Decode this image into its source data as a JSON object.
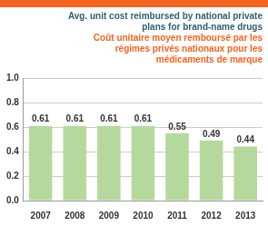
{
  "chart_data": {
    "type": "bar",
    "title": "Avg. unit cost reimbursed by national private plans for brand-name drugs",
    "subtitle": "Coût unitaire moyen remboursé par les régimes privés nationaux pour les médicaments de marque",
    "categories": [
      "2007",
      "2008",
      "2009",
      "2010",
      "2011",
      "2012",
      "2013"
    ],
    "values": [
      0.61,
      0.61,
      0.61,
      0.61,
      0.55,
      0.49,
      0.44
    ],
    "color": "#b5d99c",
    "ylim": [
      0,
      1
    ],
    "yticks": [
      {
        "value": 0,
        "label": "0.0"
      },
      0.2,
      0.4,
      0.6,
      0.8,
      {
        "value": 1,
        "label": "1.0"
      }
    ],
    "grid": true,
    "data_labels": true
  }
}
